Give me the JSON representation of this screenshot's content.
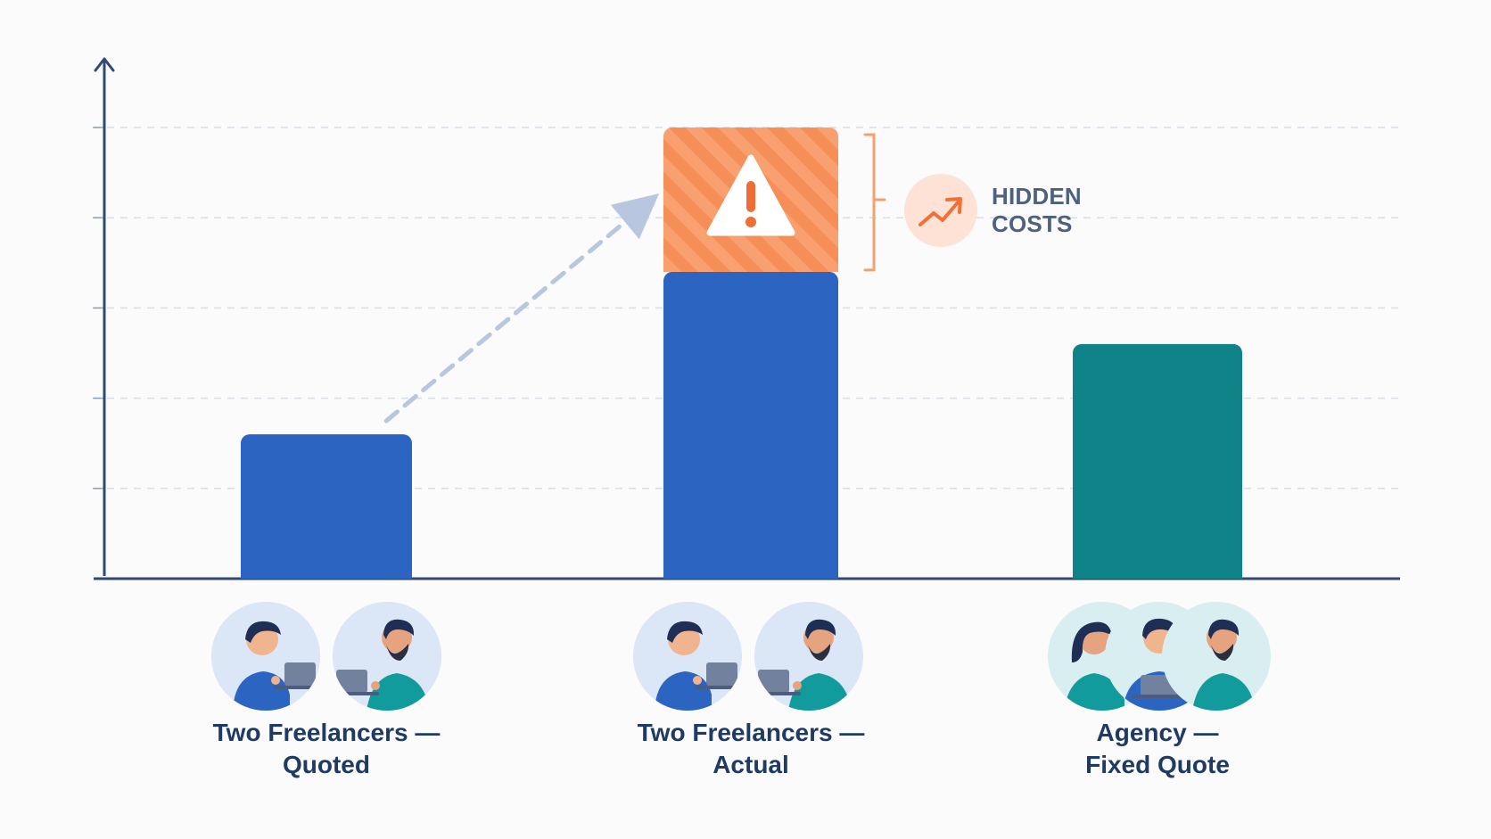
{
  "chart_data": {
    "type": "bar",
    "categories": [
      "Two Freelancers —\nQuoted",
      "Two Freelancers —\nActual",
      "Agency —\nFixed Quote"
    ],
    "series": [
      {
        "values": [
          1.6,
          3.4,
          2.6
        ]
      },
      {
        "values": [
          0,
          1.6,
          0
        ]
      }
    ],
    "ylim": [
      0,
      5
    ],
    "grid": true,
    "annotation": "HIDDEN\nCOSTS",
    "colors": {
      "base": "#2b64c1",
      "agency": "#0f8388",
      "hidden": "#f68e58",
      "axis": "#314a73",
      "callout": "#f3a16f"
    }
  },
  "icons": {
    "warning": "warning-icon",
    "trend": "trend-up-icon",
    "freelancer": "freelancer-laptop-icon",
    "agency": "agency-team-icon"
  }
}
